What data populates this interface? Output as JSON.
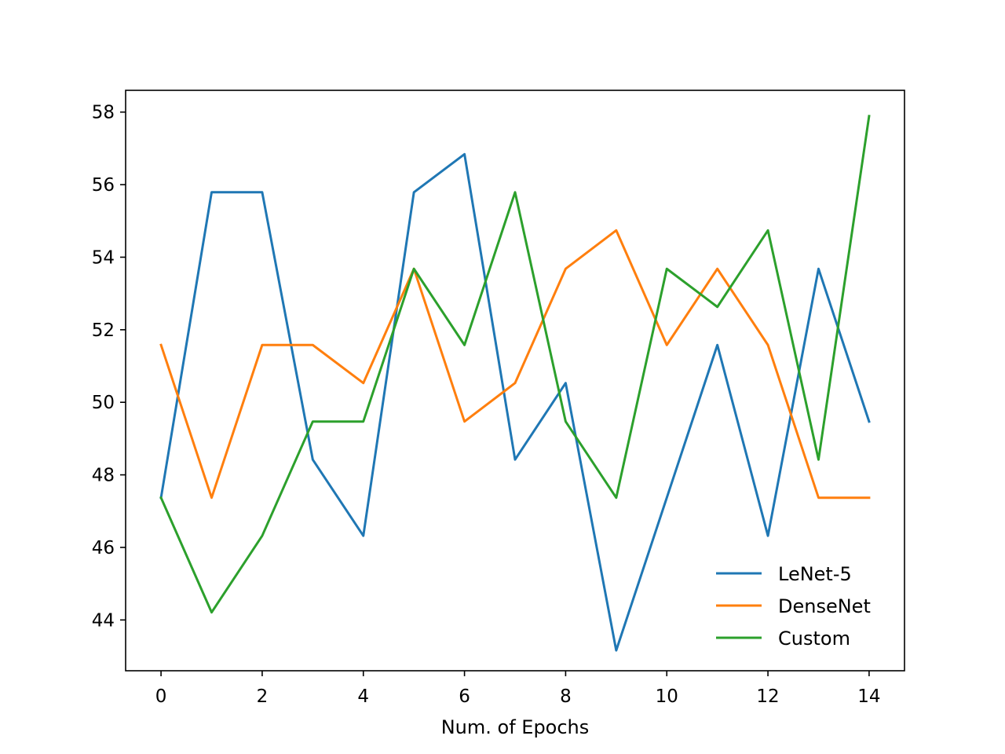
{
  "chart_data": {
    "type": "line",
    "title": "",
    "xlabel": "Num. of Epochs",
    "ylabel": "",
    "x": [
      0,
      1,
      2,
      3,
      4,
      5,
      6,
      7,
      8,
      9,
      10,
      11,
      12,
      13,
      14
    ],
    "xlim": [
      -0.7,
      14.7
    ],
    "ylim": [
      42.6,
      58.6
    ],
    "xticks": [
      0,
      2,
      4,
      6,
      8,
      10,
      12,
      14
    ],
    "yticks": [
      44,
      46,
      48,
      50,
      52,
      54,
      56,
      58
    ],
    "grid": false,
    "legend_position": "bottom-right",
    "series": [
      {
        "name": "LeNet-5",
        "color": "#1f77b4",
        "values": [
          47.37,
          55.79,
          55.79,
          48.42,
          46.32,
          55.79,
          56.84,
          48.42,
          50.53,
          43.16,
          47.37,
          51.58,
          46.32,
          53.68,
          49.47
        ]
      },
      {
        "name": "DenseNet",
        "color": "#ff7f0e",
        "values": [
          51.58,
          47.37,
          51.58,
          51.58,
          50.53,
          53.68,
          49.47,
          50.53,
          53.68,
          54.74,
          51.58,
          53.68,
          51.58,
          47.37,
          47.37
        ]
      },
      {
        "name": "Custom",
        "color": "#2ca02c",
        "values": [
          47.37,
          44.21,
          46.32,
          49.47,
          49.47,
          53.68,
          51.58,
          55.79,
          49.47,
          47.37,
          53.68,
          52.63,
          54.74,
          48.42,
          57.89
        ]
      }
    ]
  }
}
